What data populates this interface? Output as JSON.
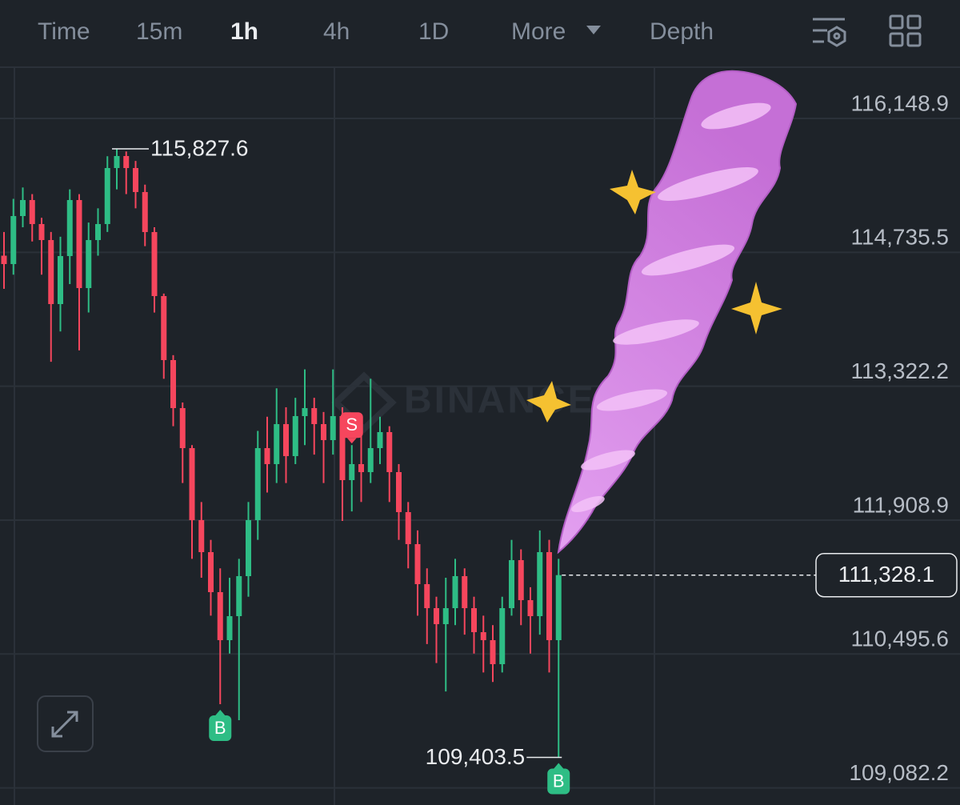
{
  "toolbar": {
    "tabs": [
      "Time",
      "15m",
      "1h",
      "4h",
      "1D",
      "More",
      "Depth"
    ],
    "active": "1h"
  },
  "chart_data": {
    "type": "candlestick",
    "watermark": "BINANCE",
    "up_color": "#2ebd85",
    "down_color": "#f6465d",
    "open": [
      114700,
      114611.5,
      115118.4,
      115287.3,
      115033.9,
      114864.9,
      114189.2,
      114696,
      115287.3,
      114358.1,
      114864.9,
      115033.9,
      115625.2,
      115751.9,
      115625.2,
      115371.8,
      114949.4,
      114273.7,
      113597.9,
      113091.1,
      112668.7,
      111908.5,
      111570.6,
      111148.3,
      110641.5,
      110894.9,
      111317.2,
      111908.5,
      112668.7,
      112499.8,
      112922.1,
      112584.3,
      113006.6,
      113091.1,
      112922.1,
      112753.2,
      113006.6,
      112330.9,
      112499.8,
      112415.3,
      112668.7,
      112837.7,
      112415.3,
      111993,
      111655.1,
      111232.7,
      110979.3,
      110810.4,
      110979.3,
      111317.2,
      110979.3,
      110725.9,
      110641.5,
      110388,
      110979.3,
      111486.2,
      111063.8,
      110894.9,
      111570.6,
      110641.5
    ],
    "high": [
      114950,
      115300,
      115420,
      115350,
      115100,
      114950,
      114900,
      115400,
      115350,
      115050,
      115200,
      115750,
      115827.6,
      115800,
      115700,
      115450,
      115000,
      114300,
      113650,
      113150,
      112700,
      112100,
      111700,
      111400,
      111300,
      111500,
      112100,
      112850,
      113000,
      113300,
      113100,
      113200,
      113500,
      113200,
      113050,
      113500,
      113100,
      112700,
      112800,
      113400,
      113000,
      112900,
      112500,
      112100,
      111800,
      111400,
      111100,
      111300,
      111500,
      111400,
      111100,
      110900,
      110800,
      111100,
      111700,
      111600,
      111200,
      111800,
      111700,
      111500
    ],
    "low": [
      114350,
      114500,
      115000,
      114850,
      114500,
      113580,
      113900,
      114400,
      113700,
      114100,
      114700,
      114950,
      115400,
      115350,
      115200,
      114800,
      114100,
      113400,
      112900,
      112300,
      111500,
      111300,
      110900,
      109966,
      110500,
      109797,
      111100,
      111700,
      112200,
      112300,
      112300,
      112500,
      112700,
      112600,
      112300,
      112600,
      111900,
      112000,
      112100,
      112300,
      112500,
      112100,
      111700,
      111400,
      110900,
      110600,
      110400,
      110100,
      110800,
      110700,
      110500,
      110300,
      110200,
      110300,
      110900,
      110800,
      110500,
      110700,
      110300,
      109403.5
    ],
    "close": [
      114611.5,
      115118.4,
      115287.3,
      115033.9,
      114864.9,
      114189.2,
      114696,
      115287.3,
      114358.1,
      114864.9,
      115033.9,
      115625.2,
      115751.9,
      115625.2,
      115371.8,
      114949.4,
      114273.7,
      113597.9,
      113091.1,
      112668.7,
      111908.5,
      111570.6,
      111148.3,
      110641.5,
      110894.9,
      111317.2,
      111908.5,
      112668.7,
      112499.8,
      112922.1,
      112584.3,
      113006.6,
      113091.1,
      112922.1,
      112753.2,
      113006.6,
      112330.9,
      112499.8,
      112415.3,
      112668.7,
      112837.7,
      112415.3,
      111993,
      111655.1,
      111232.7,
      110979.3,
      110810.4,
      110979.3,
      111317.2,
      110979.3,
      110725.9,
      110641.5,
      110388,
      110979.3,
      111486.2,
      111063.8,
      110894.9,
      111570.6,
      110641.5,
      111328.1
    ],
    "ylim": [
      108901.4,
      116681
    ],
    "yticks": [
      {
        "value": 116148.9,
        "label": "116,148.9"
      },
      {
        "value": 114735.5,
        "label": "114,735.5"
      },
      {
        "value": 113322.2,
        "label": "113,322.2"
      },
      {
        "value": 111908.9,
        "label": "111,908.9"
      },
      {
        "value": 110495.6,
        "label": "110,495.6"
      },
      {
        "value": 109082.2,
        "label": "109,082.2"
      }
    ],
    "grid": true,
    "high_label": {
      "index": 12,
      "value": 115827.6,
      "label": "115,827.6"
    },
    "low_label": {
      "index": 59,
      "value": 109403.5,
      "label": "109,403.5"
    },
    "last_price": {
      "value": 111328.1,
      "label": "111,328.1"
    },
    "markers": [
      {
        "label": "B",
        "index": 23,
        "color": "#2ebd85"
      },
      {
        "label": "S",
        "index": 37,
        "color": "#f6465d"
      },
      {
        "label": "B",
        "index": 59,
        "color": "#2ebd85"
      }
    ]
  }
}
